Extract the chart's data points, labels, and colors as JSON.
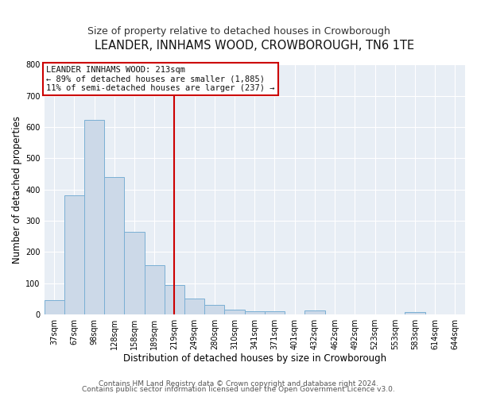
{
  "title": "LEANDER, INNHAMS WOOD, CROWBOROUGH, TN6 1TE",
  "subtitle": "Size of property relative to detached houses in Crowborough",
  "xlabel": "Distribution of detached houses by size in Crowborough",
  "ylabel": "Number of detached properties",
  "bar_labels": [
    "37sqm",
    "67sqm",
    "98sqm",
    "128sqm",
    "158sqm",
    "189sqm",
    "219sqm",
    "249sqm",
    "280sqm",
    "310sqm",
    "341sqm",
    "371sqm",
    "401sqm",
    "432sqm",
    "462sqm",
    "492sqm",
    "523sqm",
    "553sqm",
    "583sqm",
    "614sqm",
    "644sqm"
  ],
  "bar_values": [
    47,
    382,
    622,
    440,
    265,
    158,
    95,
    50,
    30,
    15,
    10,
    10,
    0,
    12,
    0,
    0,
    0,
    0,
    7,
    0,
    0
  ],
  "bar_color": "#ccd9e8",
  "bar_edgecolor": "#7aafd4",
  "vline_x": 6,
  "vline_color": "#cc0000",
  "ylim": [
    0,
    800
  ],
  "yticks": [
    0,
    100,
    200,
    300,
    400,
    500,
    600,
    700,
    800
  ],
  "annotation_title": "LEANDER INNHAMS WOOD: 213sqm",
  "annotation_line1": "← 89% of detached houses are smaller (1,885)",
  "annotation_line2": "11% of semi-detached houses are larger (237) →",
  "annotation_box_color": "#cc0000",
  "footer_line1": "Contains HM Land Registry data © Crown copyright and database right 2024.",
  "footer_line2": "Contains public sector information licensed under the Open Government Licence v3.0.",
  "bg_color": "#ffffff",
  "plot_bg_color": "#e8eef5",
  "grid_color": "#ffffff",
  "title_fontsize": 10.5,
  "subtitle_fontsize": 9,
  "axis_label_fontsize": 8.5,
  "tick_fontsize": 7,
  "annotation_fontsize": 7.5,
  "footer_fontsize": 6.5
}
